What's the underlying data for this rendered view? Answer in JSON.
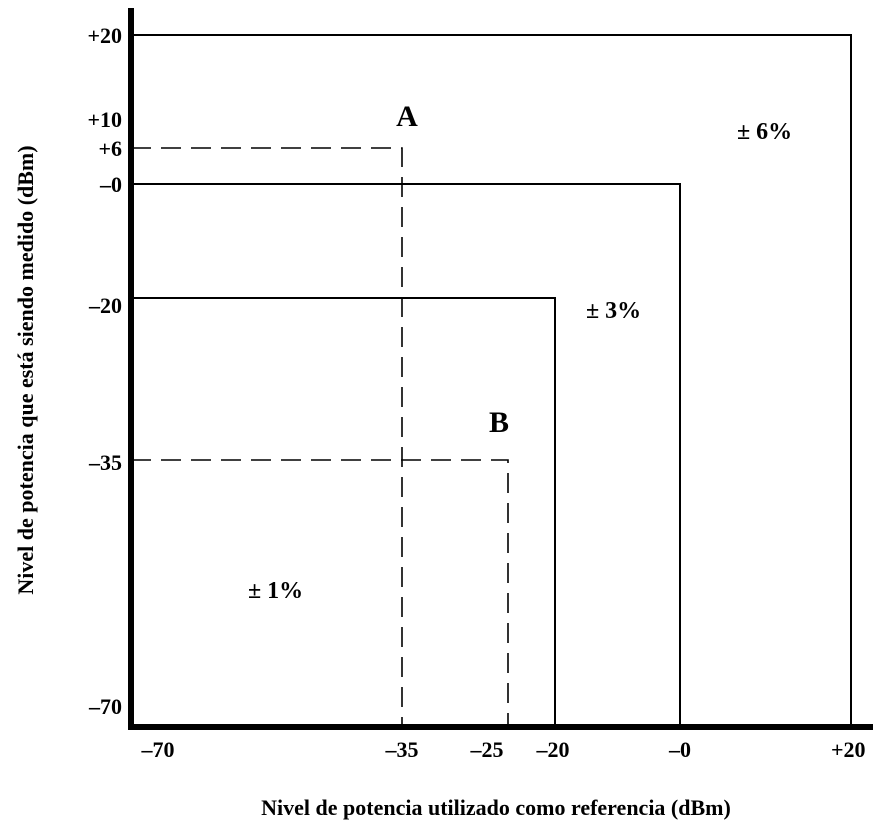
{
  "axes": {
    "x_title": "Nivel de potencia utilizado como referencia (dBm)",
    "y_title": "Nivel de potencia que está siendo medido (dBm)",
    "x_ticks": [
      "–70",
      "–35",
      "–25",
      "–20",
      "–0",
      "+20"
    ],
    "y_ticks": [
      "+20",
      "+10",
      "+6",
      "–0",
      "–20",
      "–35",
      "–70"
    ]
  },
  "regions": [
    {
      "label": "± 1%",
      "x_max_dBm": -20,
      "y_max_dBm": -20
    },
    {
      "label": "± 3%",
      "x_max_dBm": 0,
      "y_max_dBm": 0
    },
    {
      "label": "± 6%",
      "x_max_dBm": 20,
      "y_max_dBm": 20
    }
  ],
  "points": [
    {
      "label": "A",
      "x_dBm": -35,
      "y_dBm": 6
    },
    {
      "label": "B",
      "x_dBm": -25,
      "y_dBm": -35
    }
  ]
}
